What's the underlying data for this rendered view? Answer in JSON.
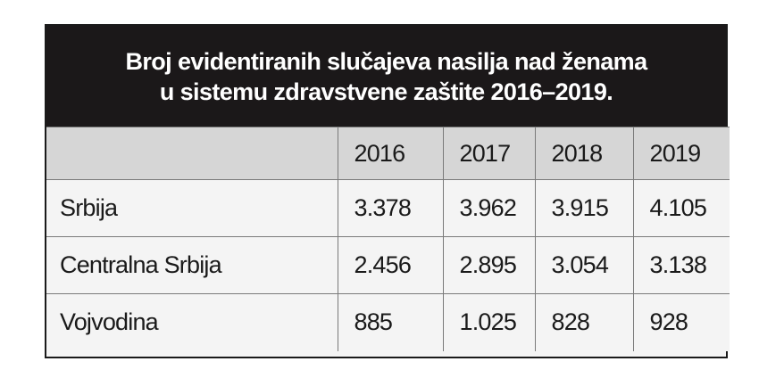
{
  "title": {
    "line1": "Broj evidentiranih slučajeva nasilja nad ženama",
    "line2": "u sistemu zdravstvene zaštite 2016–2019."
  },
  "chart_data": {
    "type": "table",
    "title": "Broj evidentiranih slučajeva nasilja nad ženama u sistemu zdravstvene zaštite 2016–2019.",
    "columns": [
      "",
      "2016",
      "2017",
      "2018",
      "2019"
    ],
    "rows": [
      {
        "label": "Srbija",
        "values": [
          "3.378",
          "3.962",
          "3.915",
          "4.105"
        ]
      },
      {
        "label": "Centralna Srbija",
        "values": [
          "2.456",
          "2.895",
          "3.054",
          "3.138"
        ]
      },
      {
        "label": "Vojvodina",
        "values": [
          "885",
          "1.025",
          "828",
          "928"
        ]
      }
    ]
  },
  "colors": {
    "title_background": "#1b1819",
    "title_text": "#ffffff",
    "header_background": "#d6d6d6",
    "body_background": "#f4f4f4"
  }
}
